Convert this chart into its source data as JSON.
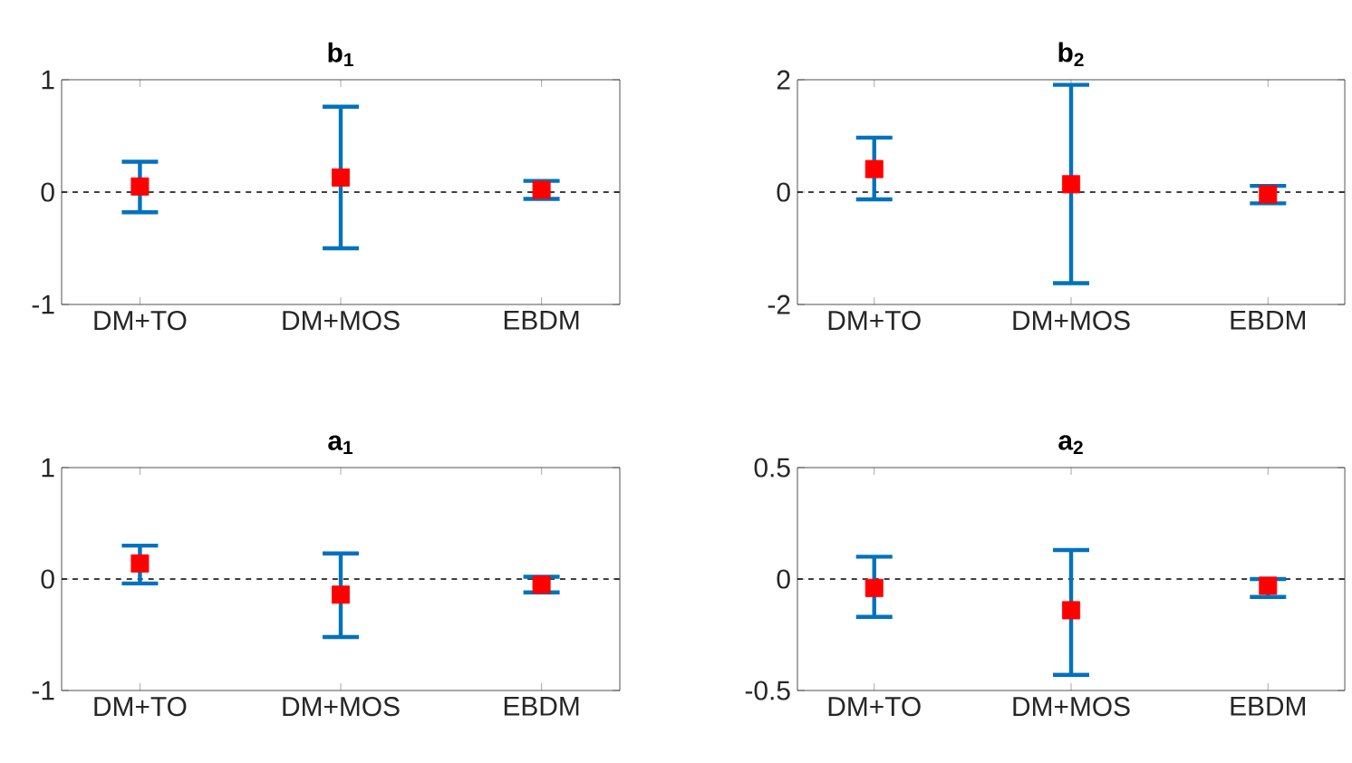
{
  "chart_data": [
    {
      "type": "scatter",
      "title": "b$_{1}$",
      "categories": [
        "DM+TO",
        "DM+MOS",
        "EBDM"
      ],
      "marker": "square",
      "ylim": [
        -1,
        1
      ],
      "yticks": [
        -1,
        0,
        1
      ],
      "series": [
        {
          "color": "#ff0000",
          "values": [
            0.05,
            0.13,
            0.02
          ],
          "errors": [
            [
              -0.18,
              0.27
            ],
            [
              -0.5,
              0.76
            ],
            [
              -0.06,
              0.1
            ]
          ]
        }
      ],
      "ref_lines": [
        {
          "axis": "y",
          "value": 0,
          "color": "#000000",
          "line_style": "dashed"
        }
      ]
    },
    {
      "type": "scatter",
      "title": "b$_{2}$",
      "categories": [
        "DM+TO",
        "DM+MOS",
        "EBDM"
      ],
      "marker": "square",
      "ylim": [
        -2,
        2
      ],
      "yticks": [
        -2,
        0,
        2
      ],
      "series": [
        {
          "color": "#ff0000",
          "values": [
            0.41,
            0.14,
            -0.04
          ],
          "errors": [
            [
              -0.13,
              0.97
            ],
            [
              -1.62,
              1.91
            ],
            [
              -0.2,
              0.11
            ]
          ]
        }
      ],
      "ref_lines": [
        {
          "axis": "y",
          "value": 0,
          "color": "#000000",
          "line_style": "dashed"
        }
      ]
    },
    {
      "type": "scatter",
      "title": "a$_{1}$",
      "categories": [
        "DM+TO",
        "DM+MOS",
        "EBDM"
      ],
      "marker": "square",
      "ylim": [
        -1,
        1
      ],
      "yticks": [
        -1,
        0,
        1
      ],
      "series": [
        {
          "color": "#ff0000",
          "values": [
            0.14,
            -0.14,
            -0.05
          ],
          "errors": [
            [
              -0.04,
              0.3
            ],
            [
              -0.52,
              0.23
            ],
            [
              -0.12,
              0.02
            ]
          ]
        }
      ],
      "ref_lines": [
        {
          "axis": "y",
          "value": 0,
          "color": "#000000",
          "line_style": "dashed"
        }
      ]
    },
    {
      "type": "scatter",
      "title": "a$_{2}$",
      "categories": [
        "DM+TO",
        "DM+MOS",
        "EBDM"
      ],
      "marker": "square",
      "ylim": [
        -0.5,
        0.5
      ],
      "yticks": [
        -0.5,
        0,
        0.5
      ],
      "series": [
        {
          "color": "#ff0000",
          "values": [
            -0.04,
            -0.14,
            -0.03
          ],
          "errors": [
            [
              -0.17,
              0.1
            ],
            [
              -0.43,
              0.13
            ],
            [
              -0.08,
              0.0
            ]
          ]
        }
      ],
      "ref_lines": [
        {
          "axis": "y",
          "value": 0,
          "color": "#000000",
          "line_style": "dashed"
        }
      ]
    }
  ]
}
